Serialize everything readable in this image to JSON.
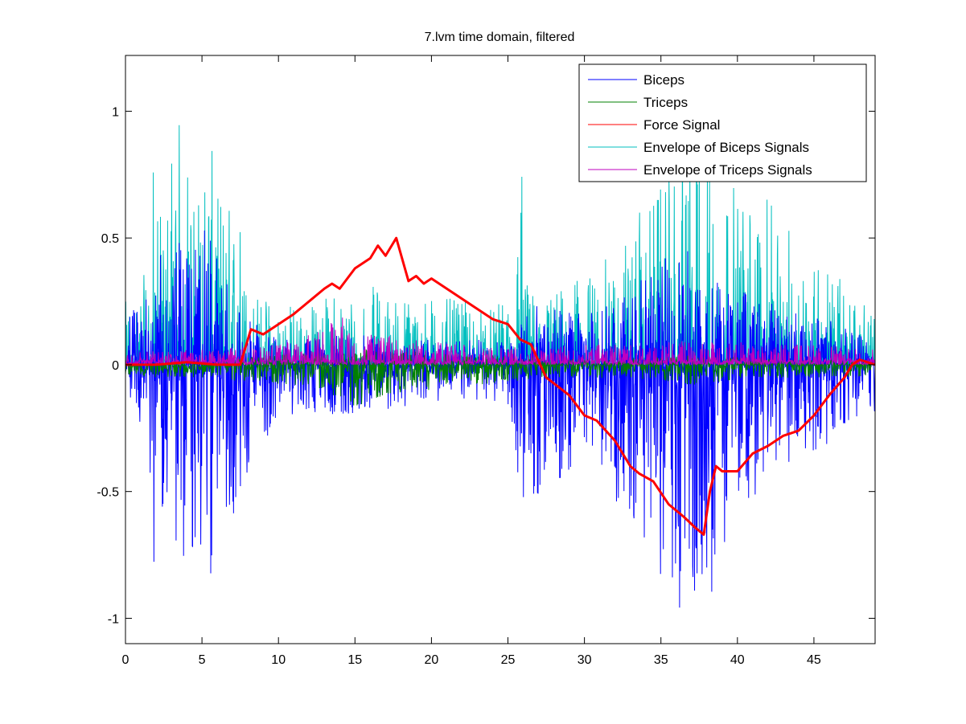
{
  "chart_data": {
    "type": "line",
    "title": "7.lvm time domain, filtered",
    "xlabel": "",
    "ylabel": "",
    "xlim": [
      0,
      49
    ],
    "ylim": [
      -1.1,
      1.22
    ],
    "x_ticks": [
      0,
      5,
      10,
      15,
      20,
      25,
      30,
      35,
      40,
      45
    ],
    "x_tick_labels": [
      "0",
      "5",
      "10",
      "15",
      "20",
      "25",
      "30",
      "35",
      "40",
      "45"
    ],
    "y_ticks": [
      1,
      0.5,
      0,
      -0.5,
      -1
    ],
    "y_tick_labels": [
      "1",
      "0.5",
      "0",
      "-0.5",
      "-1"
    ],
    "grid": false,
    "legend_position": "top-right",
    "series": [
      {
        "name": "Biceps",
        "color": "#0000ff",
        "description_points": {
          "x": [
            0,
            1.5,
            1.8,
            2.5,
            3.8,
            5.3,
            6.2,
            7.6,
            10,
            15,
            20,
            25,
            25.7,
            26,
            30,
            33,
            35,
            36.5,
            37.2,
            37.9,
            38.5,
            40,
            42,
            45,
            48,
            49
          ],
          "y_min": [
            -0.1,
            -0.3,
            -0.8,
            -0.55,
            -0.86,
            -0.88,
            -0.7,
            -0.52,
            -0.2,
            -0.2,
            -0.15,
            -0.15,
            -0.52,
            -0.6,
            -0.4,
            -0.6,
            -0.85,
            -1.0,
            -0.95,
            -1.1,
            -0.85,
            -0.6,
            -0.45,
            -0.35,
            -0.25,
            -0.2
          ],
          "y_max": [
            0.2,
            0.3,
            0.4,
            0.45,
            0.5,
            0.55,
            0.4,
            0.2,
            0.1,
            0.12,
            0.1,
            0.1,
            0.2,
            0.25,
            0.2,
            0.3,
            0.4,
            0.5,
            0.55,
            0.45,
            0.35,
            0.3,
            0.25,
            0.2,
            0.15,
            0.1
          ]
        }
      },
      {
        "name": "Triceps",
        "color": "#008000",
        "description_points": {
          "x": [
            0,
            5,
            10,
            13,
            14.5,
            15,
            17,
            20,
            22,
            25,
            26,
            30,
            35,
            37,
            40,
            45,
            49
          ],
          "y_min": [
            -0.05,
            -0.05,
            -0.08,
            -0.1,
            -0.2,
            -0.18,
            -0.12,
            -0.1,
            -0.08,
            -0.08,
            -0.06,
            -0.05,
            -0.06,
            -0.08,
            -0.06,
            -0.05,
            -0.05
          ],
          "y_max": [
            0.0,
            0.02,
            0.04,
            0.05,
            0.06,
            0.06,
            0.06,
            0.05,
            0.04,
            0.04,
            0.03,
            0.02,
            0.03,
            0.04,
            0.03,
            0.02,
            0.01
          ]
        }
      },
      {
        "name": "Force Signal",
        "color": "#ff0000",
        "x": [
          0,
          2,
          4,
          6,
          7.5,
          8.2,
          9,
          10,
          11,
          12,
          13,
          13.5,
          14,
          15,
          16,
          16.5,
          17,
          17.5,
          17.7,
          18.5,
          19,
          19.5,
          20,
          21,
          22,
          23,
          24,
          25,
          25.8,
          26.5,
          27.5,
          29,
          30,
          30.8,
          32,
          33,
          33.6,
          34.5,
          35.5,
          36.5,
          37.2,
          37.8,
          38.2,
          38.6,
          39,
          40,
          41,
          42,
          43,
          44,
          45,
          46,
          47,
          47.5,
          48,
          49
        ],
        "y": [
          0.0,
          0.0,
          0.01,
          0.0,
          0.0,
          0.14,
          0.12,
          0.16,
          0.2,
          0.25,
          0.3,
          0.32,
          0.3,
          0.38,
          0.42,
          0.47,
          0.43,
          0.48,
          0.5,
          0.33,
          0.35,
          0.32,
          0.34,
          0.3,
          0.26,
          0.22,
          0.18,
          0.16,
          0.1,
          0.08,
          -0.05,
          -0.12,
          -0.2,
          -0.22,
          -0.3,
          -0.4,
          -0.43,
          -0.46,
          -0.55,
          -0.6,
          -0.64,
          -0.67,
          -0.5,
          -0.4,
          -0.42,
          -0.42,
          -0.35,
          -0.32,
          -0.28,
          -0.26,
          -0.2,
          -0.12,
          -0.05,
          0.0,
          0.02,
          0.0
        ]
      },
      {
        "name": "Envelope of Biceps Signals",
        "color": "#00bfbf",
        "description_points": {
          "x": [
            0,
            1.7,
            1.8,
            2.5,
            3.0,
            3.8,
            4.5,
            5.3,
            6.0,
            6.5,
            7.5,
            8.0,
            10,
            12,
            14,
            16,
            18,
            20,
            22,
            24,
            25.5,
            25.9,
            26.3,
            28,
            30,
            32,
            34,
            35,
            36,
            36.8,
            37.2,
            38,
            39,
            40,
            42,
            44,
            46,
            48,
            49
          ],
          "y_min": [
            0.0,
            0.02,
            0.0,
            0.02,
            0.0,
            0.02,
            0.02,
            0.03,
            0.02,
            0.03,
            0.05,
            0.05,
            0.06,
            0.05,
            0.05,
            0.05,
            0.05,
            0.05,
            0.04,
            0.04,
            0.03,
            0.0,
            0.03,
            0.02,
            0.02,
            0.03,
            0.03,
            0.03,
            0.03,
            0.03,
            0.03,
            0.03,
            0.03,
            0.02,
            0.02,
            0.02,
            0.02,
            0.02,
            0.02
          ],
          "y_max": [
            0.25,
            0.4,
            0.82,
            0.5,
            0.96,
            1.01,
            0.65,
            0.98,
            0.72,
            0.68,
            0.62,
            0.3,
            0.26,
            0.24,
            0.3,
            0.32,
            0.28,
            0.28,
            0.25,
            0.22,
            0.3,
            0.99,
            0.3,
            0.3,
            0.35,
            0.45,
            0.65,
            0.7,
            0.8,
            1.22,
            1.1,
            0.9,
            0.78,
            0.7,
            0.65,
            0.5,
            0.4,
            0.25,
            0.2
          ]
        }
      },
      {
        "name": "Envelope of Triceps Signals",
        "color": "#bf00bf",
        "description_points": {
          "x": [
            0,
            5,
            10,
            12,
            14,
            14.5,
            15,
            17,
            20,
            22,
            25,
            28,
            30,
            35,
            37,
            40,
            45,
            49
          ],
          "y_min": [
            0.02,
            0.02,
            0.02,
            0.02,
            0.02,
            0.02,
            0.02,
            0.02,
            0.02,
            0.02,
            0.02,
            0.02,
            0.02,
            0.02,
            0.02,
            0.02,
            0.02,
            0.02
          ],
          "y_max": [
            0.05,
            0.06,
            0.08,
            0.12,
            0.2,
            0.18,
            0.14,
            0.12,
            0.1,
            0.08,
            0.07,
            0.07,
            0.08,
            0.09,
            0.1,
            0.09,
            0.08,
            0.06
          ]
        }
      }
    ]
  }
}
